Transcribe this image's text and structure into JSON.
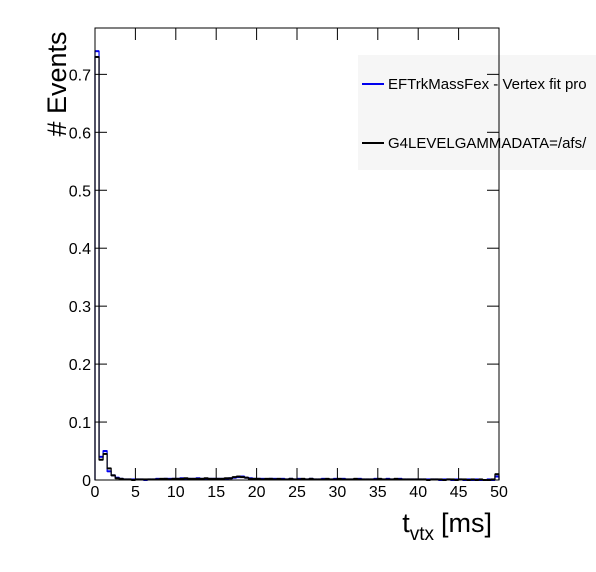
{
  "chart_data": {
    "type": "histogram",
    "xlabel": {
      "main": "t",
      "sub": "vtx",
      "unit": "[ms]"
    },
    "ylabel": "# Events",
    "bins": [
      0,
      0.5,
      1,
      1.5,
      2,
      2.5,
      3,
      3.5,
      4,
      4.5,
      5,
      5.5,
      6,
      6.5,
      7,
      7.5,
      8,
      8.5,
      9,
      9.5,
      10,
      10.5,
      11,
      11.5,
      12,
      12.5,
      13,
      13.5,
      14,
      14.5,
      15,
      15.5,
      16,
      16.5,
      17,
      17.5,
      18,
      18.5,
      19,
      19.5,
      20,
      20.5,
      21,
      21.5,
      22,
      22.5,
      23,
      23.5,
      24,
      24.5,
      25,
      25.5,
      26,
      26.5,
      27,
      27.5,
      28,
      28.5,
      29,
      29.5,
      30,
      30.5,
      31,
      31.5,
      32,
      32.5,
      33,
      33.5,
      34,
      34.5,
      35,
      35.5,
      36,
      36.5,
      37,
      37.5,
      38,
      38.5,
      39,
      39.5,
      40,
      40.5,
      41,
      41.5,
      42,
      42.5,
      43,
      43.5,
      44,
      44.5,
      45,
      45.5,
      46,
      46.5,
      47,
      47.5,
      48,
      48.5,
      49,
      49.5,
      50
    ],
    "series": [
      {
        "name": "EFTrkMassFex - Vertex fit pro",
        "color": "#0000ee",
        "values": [
          0.74,
          0.04,
          0.05,
          0.015,
          0.008,
          0.004,
          0.002,
          0.001,
          0.001,
          0.001,
          0.001,
          0.001,
          0,
          0.001,
          0.001,
          0.002,
          0.001,
          0.002,
          0.002,
          0.002,
          0.002,
          0.003,
          0.002,
          0.002,
          0.002,
          0.003,
          0.002,
          0.002,
          0.002,
          0.002,
          0.002,
          0.002,
          0.002,
          0.003,
          0.004,
          0.005,
          0.006,
          0.004,
          0.003,
          0.002,
          0.002,
          0.002,
          0.001,
          0.002,
          0.002,
          0.001,
          0.002,
          0.001,
          0.002,
          0.001,
          0.002,
          0.001,
          0.001,
          0.002,
          0.001,
          0.001,
          0.002,
          0.001,
          0.001,
          0.002,
          0.001,
          0.002,
          0.001,
          0.001,
          0.001,
          0.002,
          0.001,
          0.001,
          0.001,
          0.002,
          0.001,
          0.001,
          0.002,
          0.001,
          0.001,
          0.002,
          0.001,
          0.001,
          0.001,
          0.001,
          0.001,
          0.001,
          0.001,
          0.001,
          0.001,
          0,
          0.001,
          0.001,
          0,
          0.001,
          0.001,
          0,
          0.001,
          0,
          0.001,
          0,
          0,
          0.001,
          0,
          0.006
        ]
      },
      {
        "name": "G4LEVELGAMMADATA=/afs/",
        "color": "#000000",
        "values": [
          0.73,
          0.035,
          0.045,
          0.02,
          0.008,
          0.003,
          0.002,
          0.001,
          0.001,
          0,
          0.001,
          0.001,
          0.001,
          0.001,
          0.001,
          0.001,
          0.002,
          0.002,
          0.001,
          0.002,
          0.002,
          0.002,
          0.003,
          0.002,
          0.002,
          0.002,
          0.002,
          0.003,
          0.002,
          0.002,
          0.002,
          0.002,
          0.003,
          0.003,
          0.005,
          0.006,
          0.005,
          0.004,
          0.002,
          0.002,
          0.002,
          0.001,
          0.002,
          0.002,
          0.001,
          0.002,
          0.001,
          0.001,
          0.002,
          0.001,
          0.001,
          0.002,
          0.001,
          0.002,
          0.001,
          0.001,
          0.001,
          0.002,
          0.001,
          0.001,
          0.002,
          0.001,
          0.001,
          0.001,
          0.002,
          0.001,
          0.001,
          0.001,
          0.001,
          0.001,
          0.002,
          0.001,
          0.001,
          0.001,
          0.002,
          0.001,
          0.001,
          0.001,
          0.001,
          0.001,
          0.001,
          0.001,
          0,
          0.001,
          0.001,
          0.001,
          0,
          0.001,
          0.001,
          0,
          0.001,
          0.001,
          0,
          0.001,
          0,
          0.001,
          0,
          0,
          0.001,
          0.01
        ]
      }
    ],
    "xlim": [
      0,
      50
    ],
    "ylim": [
      0,
      0.78
    ],
    "xticks": [
      0,
      5,
      10,
      15,
      20,
      25,
      30,
      35,
      40,
      45,
      50
    ],
    "yticks": [
      0,
      0.1,
      0.2,
      0.3,
      0.4,
      0.5,
      0.6,
      0.7
    ]
  }
}
